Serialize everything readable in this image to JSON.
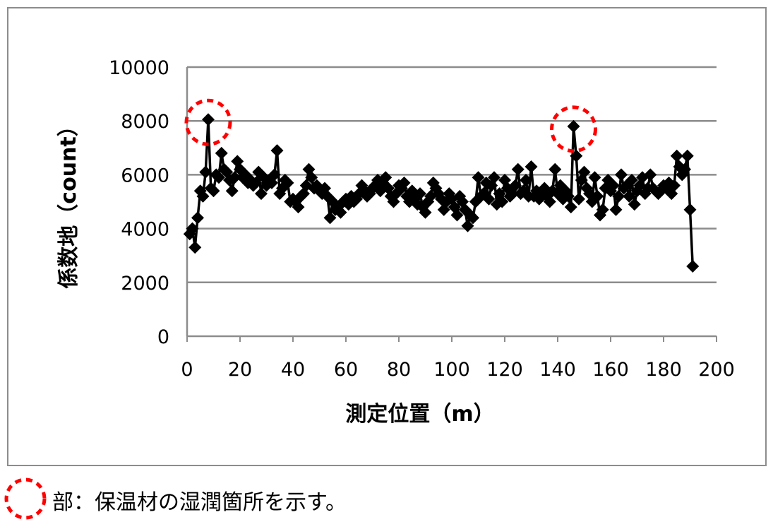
{
  "chart_data": {
    "type": "line",
    "xlabel": "測定位置（m）",
    "ylabel": "係数地（count）",
    "xlim": [
      0,
      200
    ],
    "ylim": [
      0,
      10000
    ],
    "xticks": [
      0,
      20,
      40,
      60,
      80,
      100,
      120,
      140,
      160,
      180,
      200
    ],
    "yticks": [
      0,
      2000,
      4000,
      6000,
      8000,
      10000
    ],
    "grid": "horizontal",
    "marker": "diamond",
    "color": "#000000",
    "x_start": 1,
    "x_step": 1,
    "values": [
      3800,
      4000,
      3300,
      4400,
      5400,
      5200,
      6100,
      8050,
      5500,
      5400,
      6000,
      5900,
      6800,
      6200,
      6100,
      5800,
      5400,
      5900,
      6500,
      6200,
      5900,
      6000,
      5700,
      5800,
      5600,
      5700,
      6100,
      5300,
      5900,
      5600,
      5800,
      5700,
      6000,
      6900,
      5300,
      5500,
      5800,
      5700,
      5000,
      5100,
      5000,
      4800,
      5200,
      5300,
      5600,
      6200,
      5900,
      5500,
      5600,
      5400,
      5300,
      5500,
      5200,
      4400,
      5000,
      4700,
      4800,
      4600,
      5000,
      5100,
      4900,
      5200,
      5000,
      5100,
      5300,
      5600,
      5400,
      5200,
      5300,
      5500,
      5600,
      5800,
      5400,
      5700,
      5900,
      5500,
      5200,
      5000,
      5300,
      5600,
      5500,
      5700,
      5200,
      5000,
      5400,
      5100,
      4900,
      5300,
      4800,
      4600,
      5000,
      5200,
      5700,
      5500,
      5300,
      5100,
      4700,
      5000,
      5300,
      5100,
      4800,
      4500,
      5200,
      5000,
      4700,
      4100,
      4500,
      4400,
      5000,
      5900,
      5200,
      5300,
      5700,
      5100,
      5600,
      5900,
      4900,
      5300,
      5000,
      5800,
      5500,
      5200,
      5300,
      5600,
      6200,
      5300,
      5400,
      5800,
      5200,
      6300,
      5200,
      5400,
      5100,
      5300,
      5500,
      5200,
      5000,
      5400,
      6200,
      5300,
      5600,
      5100,
      5400,
      5200,
      4800,
      7800,
      6700,
      5100,
      5800,
      6100,
      5500,
      5300,
      5000,
      5900,
      5200,
      4500,
      4700,
      5500,
      5800,
      5400,
      5600,
      4700,
      5200,
      6000,
      5500,
      5600,
      5200,
      5800,
      4900,
      5400,
      5600,
      5900,
      5300,
      5500,
      6000,
      5500,
      5400,
      5300,
      5400,
      5600,
      5500,
      5700,
      5300,
      5600,
      6700,
      6300,
      6000,
      6200,
      6700,
      4700,
      2600
    ],
    "highlights": [
      {
        "x": 8,
        "y": 8050
      },
      {
        "x": 146,
        "y": 7800
      }
    ],
    "highlight_color": "#ff0000",
    "legend_text": "部：保温材の湿潤箇所を示す。"
  }
}
